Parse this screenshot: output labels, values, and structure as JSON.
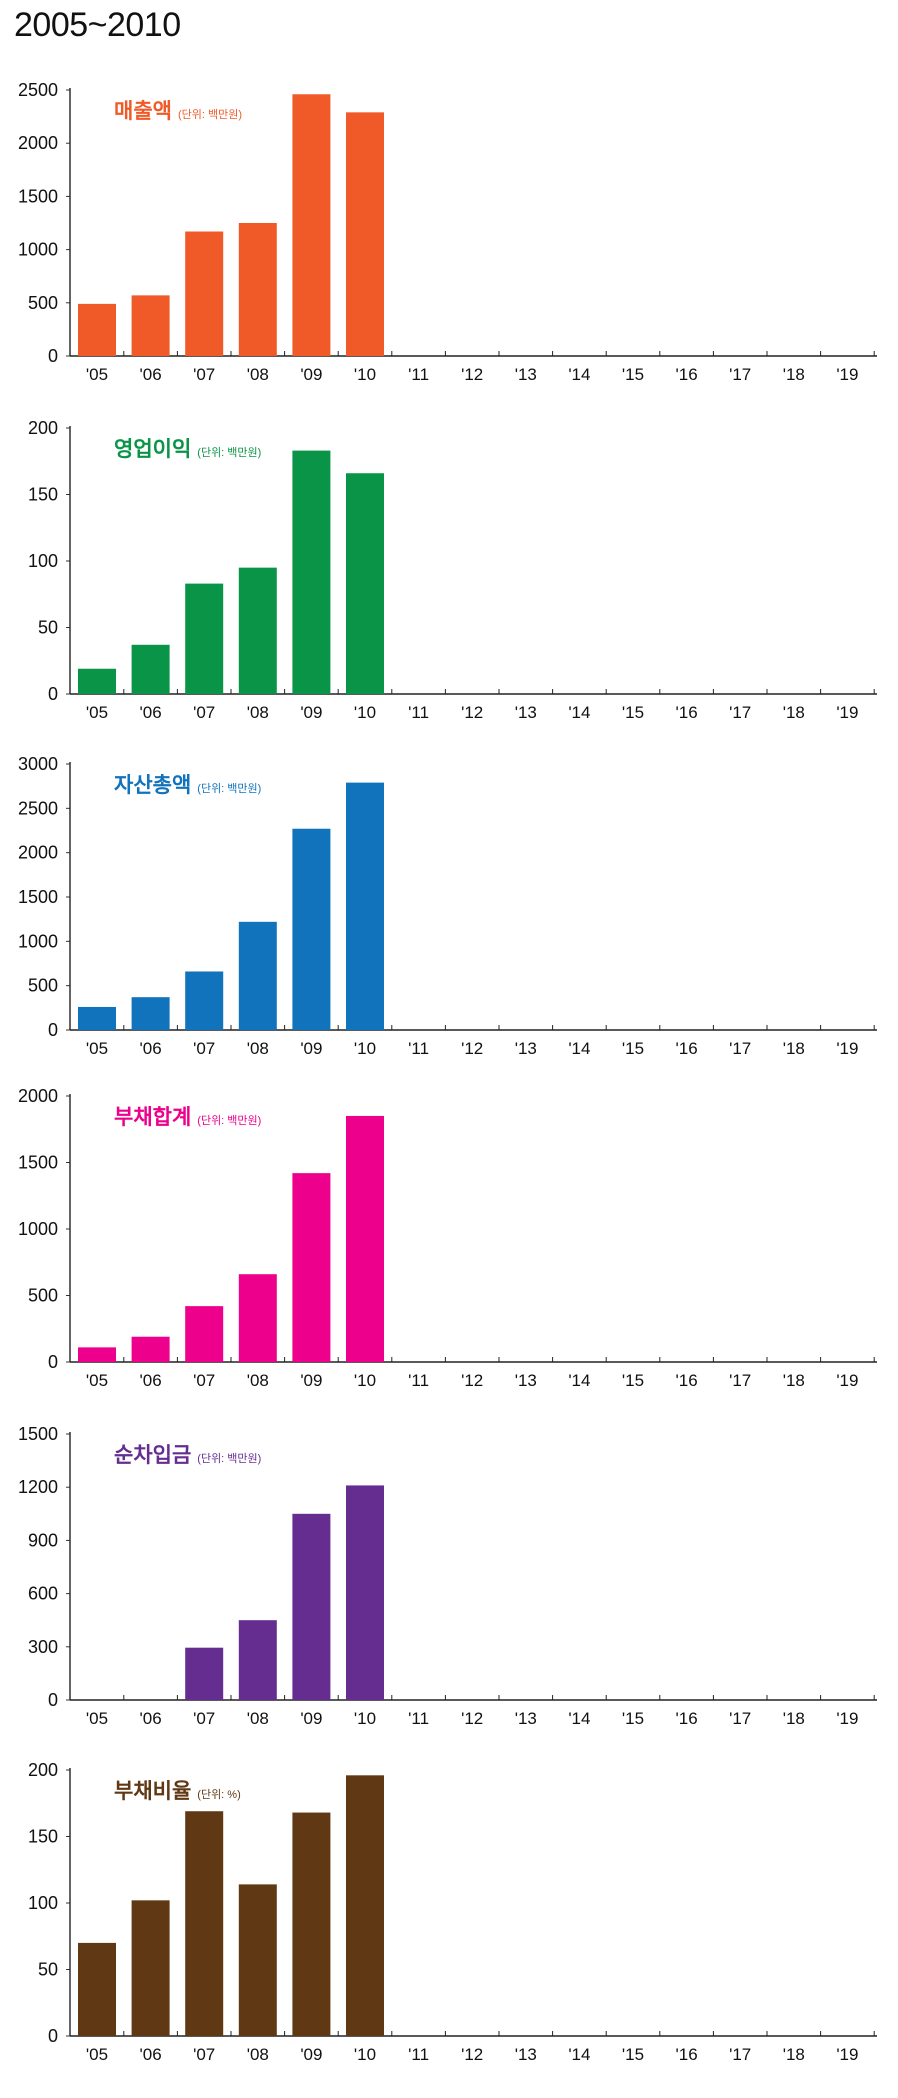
{
  "page_title": "2005~2010",
  "x_categories": [
    "'05",
    "'06",
    "'07",
    "'08",
    "'09",
    "'10",
    "'11",
    "'12",
    "'13",
    "'14",
    "'15",
    "'16",
    "'17",
    "'18",
    "'19"
  ],
  "chart_data": [
    {
      "type": "bar",
      "title": "매출액",
      "unit_note": "(단위: 백만원)",
      "color": "#f05a28",
      "categories": [
        "'05",
        "'06",
        "'07",
        "'08",
        "'09",
        "'10",
        "'11",
        "'12",
        "'13",
        "'14",
        "'15",
        "'16",
        "'17",
        "'18",
        "'19"
      ],
      "values": [
        490,
        570,
        1170,
        1250,
        2460,
        2290,
        null,
        null,
        null,
        null,
        null,
        null,
        null,
        null,
        null
      ],
      "yticks": [
        0,
        500,
        1000,
        1500,
        2000,
        2500
      ],
      "ylim": [
        0,
        2500
      ]
    },
    {
      "type": "bar",
      "title": "영업이익",
      "unit_note": "(단위: 백만원)",
      "color": "#0a9447",
      "categories": [
        "'05",
        "'06",
        "'07",
        "'08",
        "'09",
        "'10",
        "'11",
        "'12",
        "'13",
        "'14",
        "'15",
        "'16",
        "'17",
        "'18",
        "'19"
      ],
      "values": [
        19,
        37,
        83,
        95,
        183,
        166,
        null,
        null,
        null,
        null,
        null,
        null,
        null,
        null,
        null
      ],
      "yticks": [
        0,
        50,
        100,
        150,
        200
      ],
      "ylim": [
        0,
        200
      ]
    },
    {
      "type": "bar",
      "title": "자산총액",
      "unit_note": "(단위: 백만원)",
      "color": "#1173bc",
      "categories": [
        "'05",
        "'06",
        "'07",
        "'08",
        "'09",
        "'10",
        "'11",
        "'12",
        "'13",
        "'14",
        "'15",
        "'16",
        "'17",
        "'18",
        "'19"
      ],
      "values": [
        260,
        370,
        660,
        1220,
        2270,
        2790,
        null,
        null,
        null,
        null,
        null,
        null,
        null,
        null,
        null
      ],
      "yticks": [
        0,
        500,
        1000,
        1500,
        2000,
        2500,
        3000
      ],
      "ylim": [
        0,
        3000
      ]
    },
    {
      "type": "bar",
      "title": "부채합계",
      "unit_note": "(단위: 백만원)",
      "color": "#ec008c",
      "categories": [
        "'05",
        "'06",
        "'07",
        "'08",
        "'09",
        "'10",
        "'11",
        "'12",
        "'13",
        "'14",
        "'15",
        "'16",
        "'17",
        "'18",
        "'19"
      ],
      "values": [
        110,
        190,
        420,
        660,
        1420,
        1850,
        null,
        null,
        null,
        null,
        null,
        null,
        null,
        null,
        null
      ],
      "yticks": [
        0,
        500,
        1000,
        1500,
        2000
      ],
      "ylim": [
        0,
        2000
      ]
    },
    {
      "type": "bar",
      "title": "순차입금",
      "unit_note": "(단위: 백만원)",
      "color": "#662d91",
      "categories": [
        "'05",
        "'06",
        "'07",
        "'08",
        "'09",
        "'10",
        "'11",
        "'12",
        "'13",
        "'14",
        "'15",
        "'16",
        "'17",
        "'18",
        "'19"
      ],
      "values": [
        null,
        null,
        295,
        450,
        1050,
        1210,
        null,
        null,
        null,
        null,
        null,
        null,
        null,
        null,
        null
      ],
      "yticks": [
        0,
        300,
        600,
        900,
        1200,
        1500
      ],
      "ylim": [
        0,
        1500
      ]
    },
    {
      "type": "bar",
      "title": "부채비율",
      "unit_note": "(단위: %)",
      "color": "#603814",
      "categories": [
        "'05",
        "'06",
        "'07",
        "'08",
        "'09",
        "'10",
        "'11",
        "'12",
        "'13",
        "'14",
        "'15",
        "'16",
        "'17",
        "'18",
        "'19"
      ],
      "values": [
        70,
        102,
        169,
        114,
        168,
        196,
        null,
        null,
        null,
        null,
        null,
        null,
        null,
        null,
        null
      ],
      "yticks": [
        0,
        50,
        100,
        150,
        200
      ],
      "ylim": [
        0,
        200
      ]
    }
  ]
}
